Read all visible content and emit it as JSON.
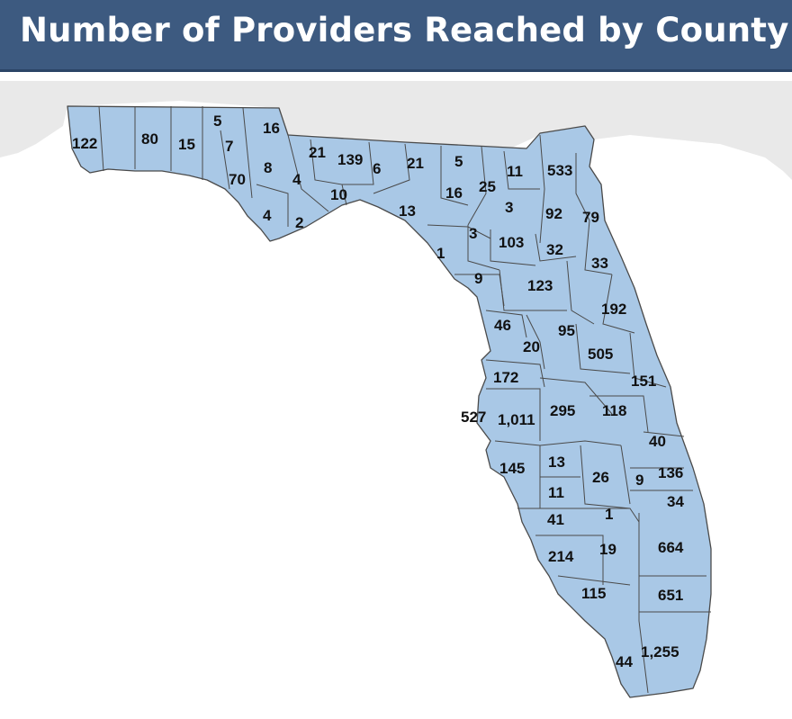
{
  "title": "Number of Providers Reached by County",
  "colors": {
    "title_bar": "#3d5a80",
    "title_text": "#ffffff",
    "county_fill": "#a9c8e6",
    "county_stroke": "#4a4a4a",
    "land_outside": "#e9e9e9",
    "label_text": "#111111"
  },
  "counties": [
    {
      "value": "122"
    },
    {
      "value": "80"
    },
    {
      "value": "15"
    },
    {
      "value": "5"
    },
    {
      "value": "7"
    },
    {
      "value": "16"
    },
    {
      "value": "70"
    },
    {
      "value": "8"
    },
    {
      "value": "4"
    },
    {
      "value": "4"
    },
    {
      "value": "2"
    },
    {
      "value": "21"
    },
    {
      "value": "139"
    },
    {
      "value": "6"
    },
    {
      "value": "21"
    },
    {
      "value": "5"
    },
    {
      "value": "10"
    },
    {
      "value": "13"
    },
    {
      "value": "16"
    },
    {
      "value": "25"
    },
    {
      "value": "11"
    },
    {
      "value": "533"
    },
    {
      "value": "3"
    },
    {
      "value": "92"
    },
    {
      "value": "79"
    },
    {
      "value": "3"
    },
    {
      "value": "103"
    },
    {
      "value": "1"
    },
    {
      "value": "32"
    },
    {
      "value": "33"
    },
    {
      "value": "9"
    },
    {
      "value": "123"
    },
    {
      "value": "192"
    },
    {
      "value": "46"
    },
    {
      "value": "95"
    },
    {
      "value": "20"
    },
    {
      "value": "505"
    },
    {
      "value": "172"
    },
    {
      "value": "151"
    },
    {
      "value": "527"
    },
    {
      "value": "1,011"
    },
    {
      "value": "295"
    },
    {
      "value": "118"
    },
    {
      "value": "40"
    },
    {
      "value": "145"
    },
    {
      "value": "13"
    },
    {
      "value": "26"
    },
    {
      "value": "9"
    },
    {
      "value": "136"
    },
    {
      "value": "11"
    },
    {
      "value": "34"
    },
    {
      "value": "41"
    },
    {
      "value": "1"
    },
    {
      "value": "664"
    },
    {
      "value": "214"
    },
    {
      "value": "19"
    },
    {
      "value": "115"
    },
    {
      "value": "651"
    },
    {
      "value": "44"
    },
    {
      "value": "1,255"
    }
  ]
}
